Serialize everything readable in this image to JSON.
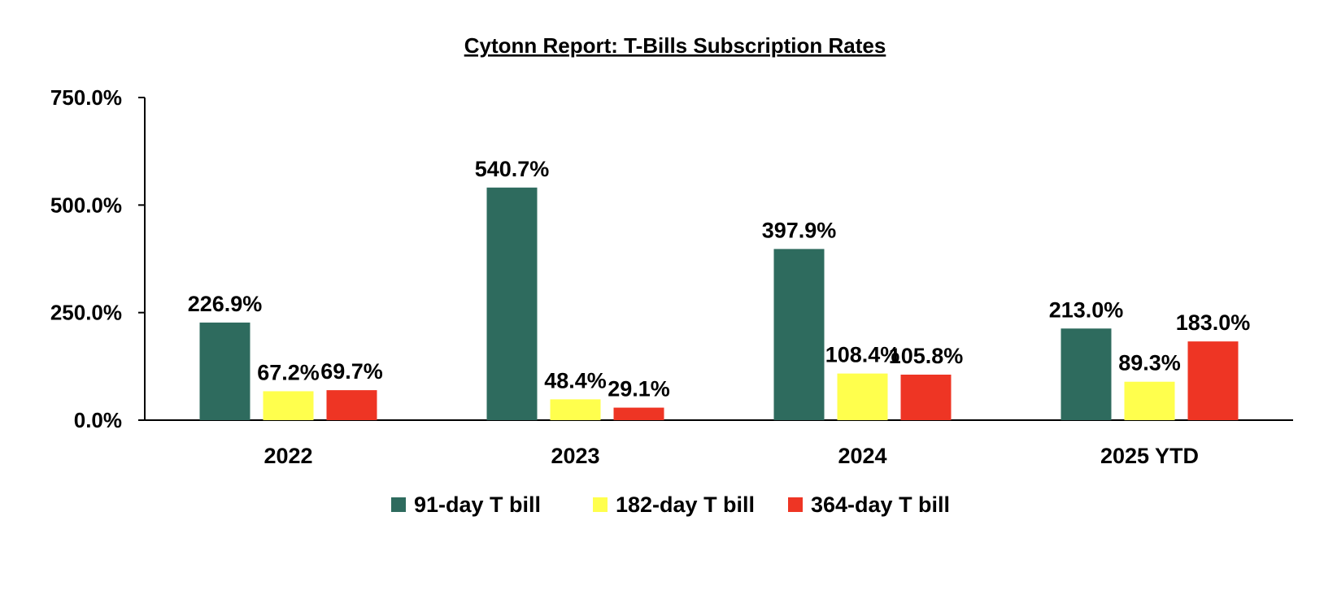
{
  "chart_data": {
    "type": "bar",
    "title": "Cytonn Report: T-Bills Subscription Rates",
    "xlabel": "",
    "ylabel": "",
    "categories": [
      "2022",
      "2023",
      "2024",
      "2025 YTD"
    ],
    "ylim": [
      0,
      750
    ],
    "yticks": [
      0,
      250,
      500,
      750
    ],
    "ytick_labels": [
      "0.0%",
      "250.0%",
      "500.0%",
      "750.0%"
    ],
    "grid": false,
    "legend_position": "bottom",
    "series": [
      {
        "name": "91-day T bill",
        "color": "#2E6B5E",
        "values": [
          226.9,
          540.7,
          397.9,
          213.0
        ],
        "labels": [
          "226.9%",
          "540.7%",
          "397.9%",
          "213.0%"
        ]
      },
      {
        "name": "182-day T bill",
        "color": "#FFFF4D",
        "values": [
          67.2,
          48.4,
          108.4,
          89.3
        ],
        "labels": [
          "67.2%",
          "48.4%",
          "108.4%",
          "89.3%"
        ]
      },
      {
        "name": "364-day T bill",
        "color": "#EE3524",
        "values": [
          69.7,
          29.1,
          105.8,
          183.0
        ],
        "labels": [
          "69.7%",
          "29.1%",
          "105.8%",
          "183.0%"
        ]
      }
    ]
  }
}
